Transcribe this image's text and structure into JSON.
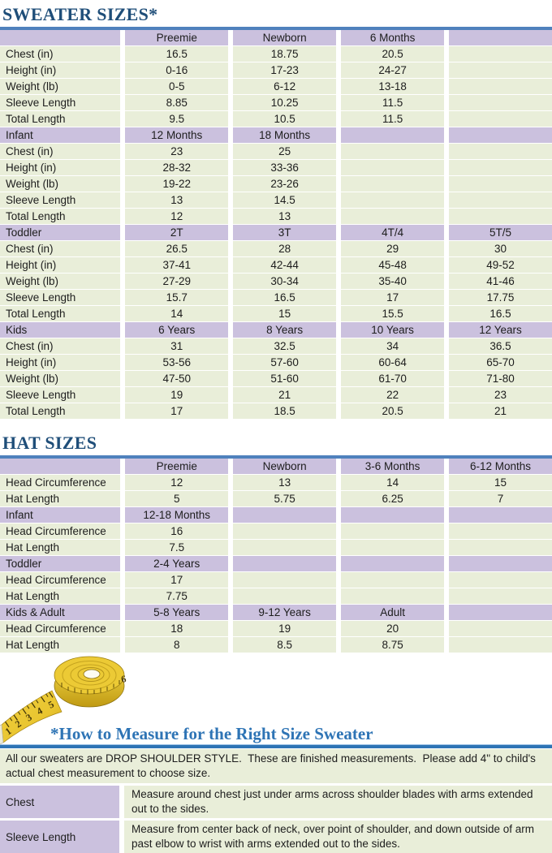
{
  "titles": {
    "sweater": "SWEATER SIZES*",
    "hat": "HAT SIZES",
    "measure": "*How to Measure for the Right Size Sweater"
  },
  "colors": {
    "heading_navy": "#1F4E79",
    "rule_steel_blue": "#4F81BD",
    "measure_blue": "#2E74B5",
    "header_purple": "#CBC1DE",
    "row_green": "#E9EED9",
    "tape_yellow": "#E8C530"
  },
  "sweater_table": {
    "sections": [
      {
        "header": [
          "",
          "Preemie",
          "Newborn",
          "6 Months",
          ""
        ],
        "rows": [
          [
            "Chest (in)",
            "16.5",
            "18.75",
            "20.5",
            ""
          ],
          [
            "Height (in)",
            "0-16",
            "17-23",
            "24-27",
            ""
          ],
          [
            "Weight (lb)",
            "0-5",
            "6-12",
            "13-18",
            ""
          ],
          [
            "Sleeve Length",
            "8.85",
            "10.25",
            "11.5",
            ""
          ],
          [
            "Total Length",
            "9.5",
            "10.5",
            "11.5",
            ""
          ]
        ]
      },
      {
        "header": [
          "Infant",
          "12 Months",
          "18 Months",
          "",
          ""
        ],
        "rows": [
          [
            "Chest (in)",
            "23",
            "25",
            "",
            ""
          ],
          [
            "Height (in)",
            "28-32",
            "33-36",
            "",
            ""
          ],
          [
            "Weight (lb)",
            "19-22",
            "23-26",
            "",
            ""
          ],
          [
            "Sleeve Length",
            "13",
            "14.5",
            "",
            ""
          ],
          [
            "Total Length",
            "12",
            "13",
            "",
            ""
          ]
        ]
      },
      {
        "header": [
          "Toddler",
          "2T",
          "3T",
          "4T/4",
          "5T/5"
        ],
        "rows": [
          [
            "Chest (in)",
            "26.5",
            "28",
            "29",
            "30"
          ],
          [
            "Height (in)",
            "37-41",
            "42-44",
            "45-48",
            "49-52"
          ],
          [
            "Weight (lb)",
            "27-29",
            "30-34",
            "35-40",
            "41-46"
          ],
          [
            "Sleeve Length",
            "15.7",
            "16.5",
            "17",
            "17.75"
          ],
          [
            "Total Length",
            "14",
            "15",
            "15.5",
            "16.5"
          ]
        ]
      },
      {
        "header": [
          "Kids",
          "6 Years",
          "8 Years",
          "10 Years",
          "12 Years"
        ],
        "rows": [
          [
            "Chest (in)",
            "31",
            "32.5",
            "34",
            "36.5"
          ],
          [
            "Height (in)",
            "53-56",
            "57-60",
            "60-64",
            "65-70"
          ],
          [
            "Weight (lb)",
            "47-50",
            "51-60",
            "61-70",
            "71-80"
          ],
          [
            "Sleeve Length",
            "19",
            "21",
            "22",
            "23"
          ],
          [
            "Total Length",
            "17",
            "18.5",
            "20.5",
            "21"
          ]
        ]
      }
    ]
  },
  "hat_table": {
    "sections": [
      {
        "header": [
          "",
          "Preemie",
          "Newborn",
          "3-6 Months",
          "6-12 Months"
        ],
        "rows": [
          [
            "Head Circumference",
            "12",
            "13",
            "14",
            "15"
          ],
          [
            "Hat Length",
            "5",
            "5.75",
            "6.25",
            "7"
          ]
        ]
      },
      {
        "header": [
          "Infant",
          "12-18 Months",
          "",
          "",
          ""
        ],
        "rows": [
          [
            "Head Circumference",
            "16",
            "",
            "",
            ""
          ],
          [
            "Hat Length",
            "7.5",
            "",
            "",
            ""
          ]
        ]
      },
      {
        "header": [
          "Toddler",
          "2-4 Years",
          "",
          "",
          ""
        ],
        "rows": [
          [
            "Head Circumference",
            "17",
            "",
            "",
            ""
          ],
          [
            "Hat Length",
            "7.75",
            "",
            "",
            ""
          ]
        ]
      },
      {
        "header": [
          "Kids & Adult",
          "5-8 Years",
          "9-12 Years",
          "Adult",
          ""
        ],
        "rows": [
          [
            "Head Circumference",
            "18",
            "19",
            "20",
            ""
          ],
          [
            "Hat Length",
            "8",
            "8.5",
            "8.75",
            ""
          ]
        ]
      }
    ]
  },
  "measure": {
    "intro": "All our sweaters are DROP SHOULDER STYLE.  These are finished measurements.  Please add 4\" to child's actual chest measurement to choose size.",
    "rows": [
      {
        "label": "Chest",
        "text": "Measure around chest just under arms across shoulder blades with arms extended out to the sides."
      },
      {
        "label": "Sleeve Length",
        "text": "Measure from center back of neck, over point of shoulder, and down outside of arm past elbow to wrist with arms extended out to the sides."
      }
    ]
  },
  "tape": {
    "name": "measuring-tape",
    "numbers": [
      "1",
      "2",
      "3",
      "4",
      "5",
      "6"
    ]
  }
}
